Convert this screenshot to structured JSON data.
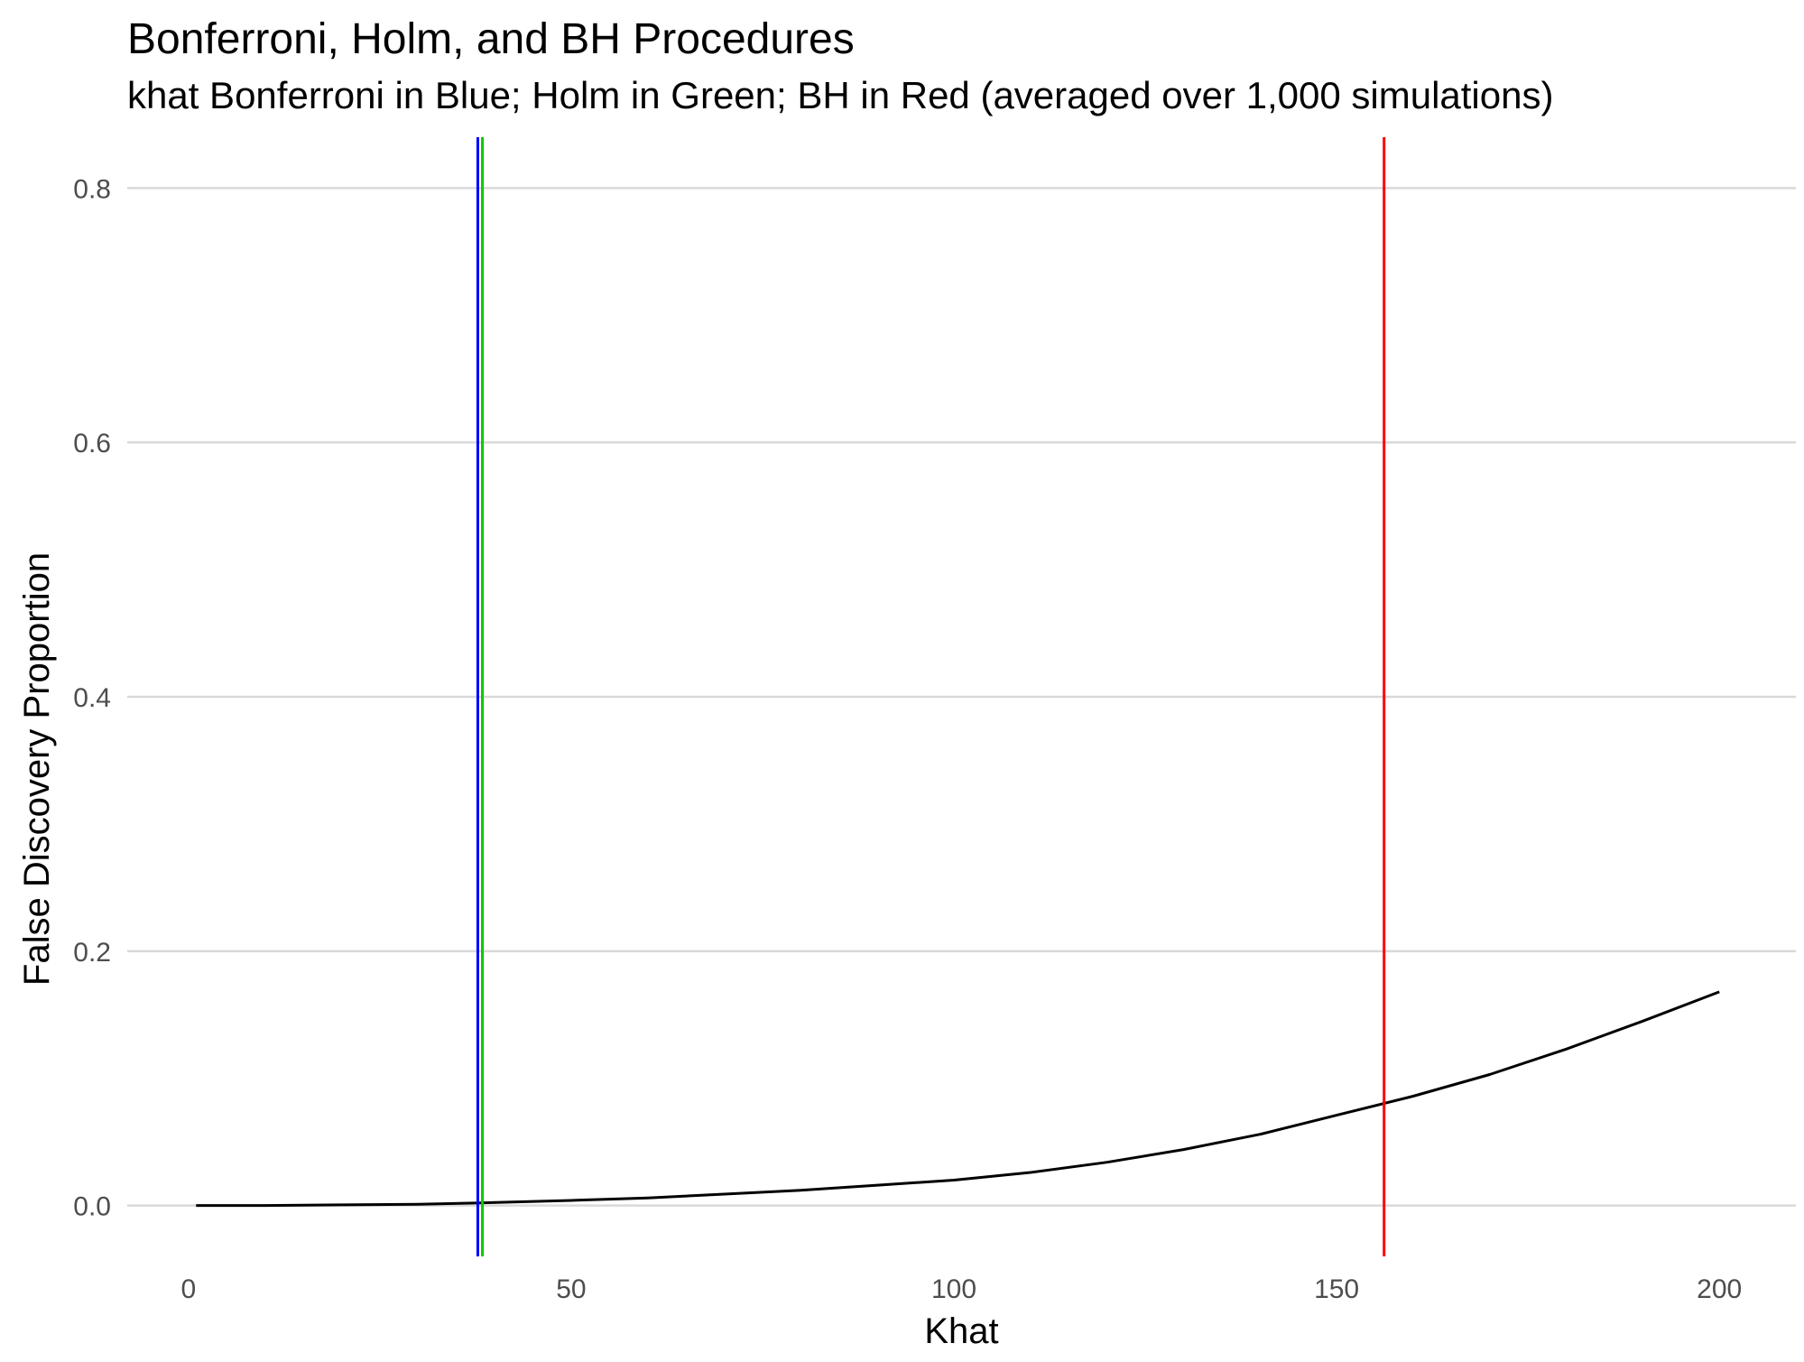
{
  "chart_data": {
    "type": "line",
    "title": "Bonferroni, Holm, and BH Procedures",
    "subtitle": "khat Bonferroni in Blue; Holm in Green; BH in Red (averaged over 1,000 simulations)",
    "xlabel": "Khat",
    "ylabel": "False Discovery Proportion",
    "xlim": [
      -8,
      210
    ],
    "ylim": [
      -0.04,
      0.84
    ],
    "x_ticks": [
      0,
      50,
      100,
      150,
      200
    ],
    "x_tick_labels": [
      "0",
      "50",
      "100",
      "150",
      "200"
    ],
    "y_ticks": [
      0.0,
      0.2,
      0.4,
      0.6,
      0.8
    ],
    "y_tick_labels": [
      "0.0",
      "0.2",
      "0.4",
      "0.6",
      "0.8"
    ],
    "grid": "horizontal",
    "series": [
      {
        "color": "#000000",
        "x": [
          1,
          10,
          20,
          30,
          38,
          50,
          60,
          70,
          80,
          90,
          100,
          110,
          120,
          130,
          140,
          150,
          156,
          160,
          170,
          180,
          190,
          200
        ],
        "y": [
          0.0,
          0.0,
          0.0005,
          0.001,
          0.002,
          0.004,
          0.006,
          0.009,
          0.012,
          0.016,
          0.02,
          0.026,
          0.034,
          0.044,
          0.056,
          0.071,
          0.08,
          0.086,
          0.103,
          0.123,
          0.145,
          0.168
        ]
      }
    ],
    "vlines": [
      {
        "method": "Bonferroni",
        "x": 37.8,
        "color": "#0000ff"
      },
      {
        "method": "Holm",
        "x": 38.4,
        "color": "#00cc00"
      },
      {
        "method": "BH",
        "x": 156.2,
        "color": "#ff0000"
      }
    ]
  }
}
